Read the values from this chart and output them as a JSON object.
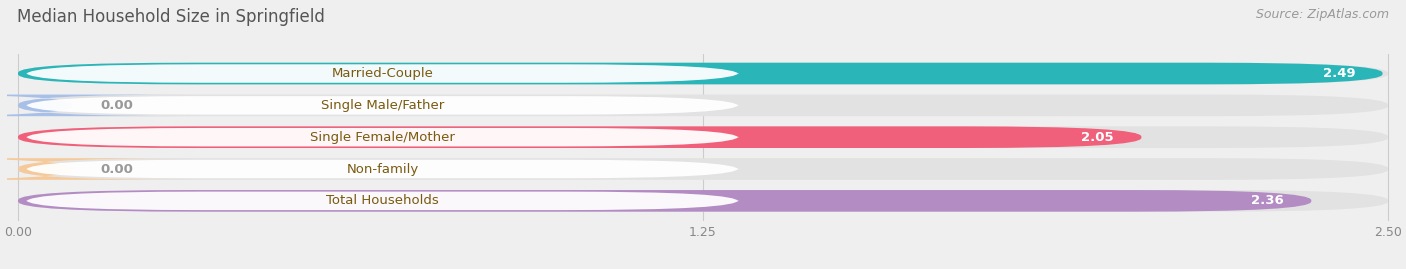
{
  "title": "Median Household Size in Springfield",
  "source": "Source: ZipAtlas.com",
  "categories": [
    "Married-Couple",
    "Single Male/Father",
    "Single Female/Mother",
    "Non-family",
    "Total Households"
  ],
  "values": [
    2.49,
    0.0,
    2.05,
    0.0,
    2.36
  ],
  "bar_colors": [
    "#2ab5b8",
    "#a8c0e8",
    "#f0607a",
    "#f5c99a",
    "#b48cc4"
  ],
  "value_colors": [
    "#ffffff",
    "#aaaaaa",
    "#ffffff",
    "#aaaaaa",
    "#ffffff"
  ],
  "label_text_color": "#7a5a10",
  "xlim_max": 2.5,
  "xticks": [
    0.0,
    1.25,
    2.5
  ],
  "xtick_labels": [
    "0.00",
    "1.25",
    "2.50"
  ],
  "background_color": "#efefef",
  "bar_bg_color": "#e2e2e2",
  "title_fontsize": 12,
  "label_fontsize": 9.5,
  "value_fontsize": 9.5,
  "source_fontsize": 9
}
